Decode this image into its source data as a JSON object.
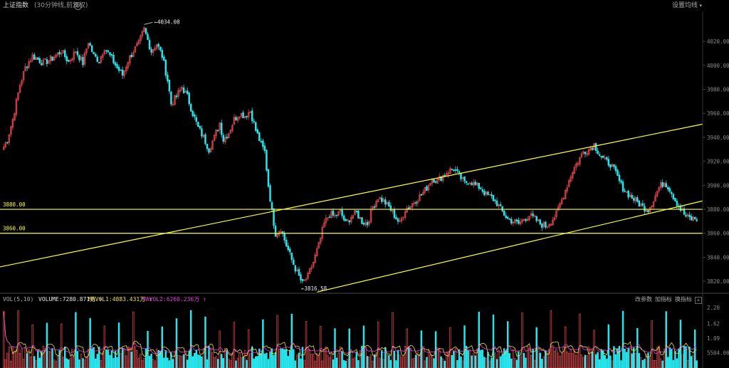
{
  "header": {
    "title": "上证指数",
    "subtitle": "(30分钟线,前复权)",
    "settings_icon": "gear-icon",
    "ma_settings": "设置均线",
    "ma_chevron": "▾"
  },
  "volume_header": {
    "label": "VOL(5,10)",
    "volume": "VOLUME:7280.871万 ↑",
    "mavol1": "MAVOL1:4883.431万 ↑",
    "mavol2": "MAVOL2:6260.236万 ↑",
    "btn_params": "改参数",
    "btn_add": "加指标",
    "btn_switch": "换指标",
    "btn_close": "×"
  },
  "colors": {
    "up": "#e0484c",
    "down": "#29e6ee",
    "trendline": "#ffff3a",
    "mavol1": "#f0e040",
    "mavol2": "#e040e0",
    "axis_text": "#8a8a8a",
    "background": "#000000"
  },
  "chart_data": [
    {
      "type": "candlestick",
      "title": "上证指数",
      "price_ticks": [
        4020,
        4000,
        3980,
        3960,
        3940,
        3920,
        3900,
        3880,
        3860,
        3840,
        3820
      ],
      "price_tick_labels": [
        "4020.00",
        "4000.00",
        "3980.00",
        "3960.00",
        "3940.00",
        "3920.00",
        "3900.00",
        "3880.00",
        "3860.00",
        "3840.00",
        "3820.00"
      ],
      "ylim": [
        3810,
        4045
      ],
      "annotations": [
        {
          "label": "4034.08",
          "value": 4034.08
        },
        {
          "label": "3816.58",
          "value": 3816.58
        }
      ],
      "horizontal_lines": [
        {
          "label": "3880.00",
          "value": 3880.0
        },
        {
          "label": "3860.00",
          "value": 3860.0
        }
      ],
      "trend_lines": [
        {
          "from": {
            "bar": 0,
            "value": 3832
          },
          "to": {
            "bar": 146,
            "value": 3951
          }
        },
        {
          "from": {
            "bar": 66,
            "value": 3811
          },
          "to": {
            "bar": 146,
            "value": 3887
          }
        }
      ],
      "anchors": [
        [
          0,
          3932
        ],
        [
          2,
          3938
        ],
        [
          5,
          3955
        ],
        [
          9,
          3984
        ],
        [
          12,
          3998
        ],
        [
          16,
          4008
        ],
        [
          22,
          4002
        ],
        [
          27,
          4006
        ],
        [
          32,
          4012
        ],
        [
          36,
          4003
        ],
        [
          40,
          4012
        ],
        [
          44,
          4002
        ],
        [
          47,
          4020
        ],
        [
          50,
          4008
        ],
        [
          53,
          4004
        ],
        [
          56,
          4015
        ],
        [
          59,
          4008
        ],
        [
          63,
          3998
        ],
        [
          66,
          3992
        ],
        [
          69,
          4004
        ],
        [
          72,
          4012
        ],
        [
          75,
          4018
        ],
        [
          78,
          4030
        ],
        [
          82,
          4012
        ],
        [
          85,
          4018
        ],
        [
          88,
          4008
        ],
        [
          91,
          3988
        ],
        [
          93,
          3968
        ],
        [
          96,
          3974
        ],
        [
          99,
          3982
        ],
        [
          102,
          3974
        ],
        [
          105,
          3960
        ],
        [
          108,
          3948
        ],
        [
          111,
          3940
        ],
        [
          114,
          3930
        ],
        [
          117,
          3940
        ],
        [
          120,
          3952
        ],
        [
          122,
          3938
        ],
        [
          125,
          3944
        ],
        [
          128,
          3955
        ],
        [
          131,
          3960
        ],
        [
          134,
          3958
        ],
        [
          137,
          3962
        ],
        [
          140,
          3946
        ],
        [
          143,
          3934
        ],
        [
          145,
          3928
        ],
        [
          147,
          3900
        ],
        [
          149,
          3878
        ],
        [
          151,
          3860
        ],
        [
          154,
          3864
        ],
        [
          157,
          3850
        ],
        [
          160,
          3838
        ],
        [
          163,
          3827
        ],
        [
          166,
          3818
        ],
        [
          169,
          3824
        ],
        [
          172,
          3836
        ],
        [
          175,
          3850
        ],
        [
          178,
          3868
        ],
        [
          181,
          3876
        ],
        [
          184,
          3874
        ],
        [
          187,
          3878
        ],
        [
          190,
          3868
        ],
        [
          193,
          3874
        ],
        [
          196,
          3877
        ],
        [
          199,
          3870
        ],
        [
          202,
          3868
        ],
        [
          205,
          3882
        ],
        [
          208,
          3890
        ],
        [
          211,
          3887
        ],
        [
          214,
          3882
        ],
        [
          217,
          3875
        ],
        [
          220,
          3868
        ],
        [
          223,
          3880
        ],
        [
          226,
          3883
        ],
        [
          229,
          3888
        ],
        [
          232,
          3892
        ],
        [
          235,
          3898
        ],
        [
          238,
          3906
        ],
        [
          241,
          3904
        ],
        [
          244,
          3908
        ],
        [
          247,
          3912
        ],
        [
          250,
          3914
        ],
        [
          253,
          3908
        ],
        [
          256,
          3902
        ],
        [
          259,
          3904
        ],
        [
          262,
          3900
        ],
        [
          265,
          3898
        ],
        [
          268,
          3892
        ],
        [
          271,
          3890
        ],
        [
          274,
          3885
        ],
        [
          277,
          3878
        ],
        [
          280,
          3872
        ],
        [
          283,
          3870
        ],
        [
          286,
          3868
        ],
        [
          289,
          3872
        ],
        [
          292,
          3875
        ],
        [
          295,
          3872
        ],
        [
          298,
          3868
        ],
        [
          301,
          3866
        ],
        [
          304,
          3870
        ],
        [
          307,
          3876
        ],
        [
          310,
          3888
        ],
        [
          313,
          3900
        ],
        [
          316,
          3912
        ],
        [
          319,
          3920
        ],
        [
          322,
          3928
        ],
        [
          325,
          3930
        ],
        [
          328,
          3934
        ],
        [
          331,
          3926
        ],
        [
          334,
          3920
        ],
        [
          337,
          3918
        ],
        [
          340,
          3910
        ],
        [
          343,
          3900
        ],
        [
          346,
          3894
        ],
        [
          349,
          3890
        ],
        [
          352,
          3886
        ],
        [
          355,
          3882
        ],
        [
          358,
          3880
        ],
        [
          361,
          3888
        ],
        [
          364,
          3898
        ],
        [
          367,
          3903
        ],
        [
          370,
          3897
        ],
        [
          373,
          3888
        ],
        [
          376,
          3880
        ],
        [
          379,
          3874
        ],
        [
          382,
          3872
        ]
      ],
      "bar_count": 386
    },
    {
      "type": "bar",
      "title": "VOL(5,10)",
      "ylim": [
        0,
        2.3
      ],
      "vol_ticks": [
        2.2,
        1.62,
        1.09,
        0.5504
      ],
      "vol_tick_labels": [
        "2.20",
        "1.62",
        "1.09",
        "5504.00"
      ],
      "series": [
        {
          "name": "VOLUME",
          "current": "7280.871万"
        },
        {
          "name": "MAVOL1",
          "current": "4883.431万"
        },
        {
          "name": "MAVOL2",
          "current": "6260.236万"
        }
      ]
    }
  ]
}
